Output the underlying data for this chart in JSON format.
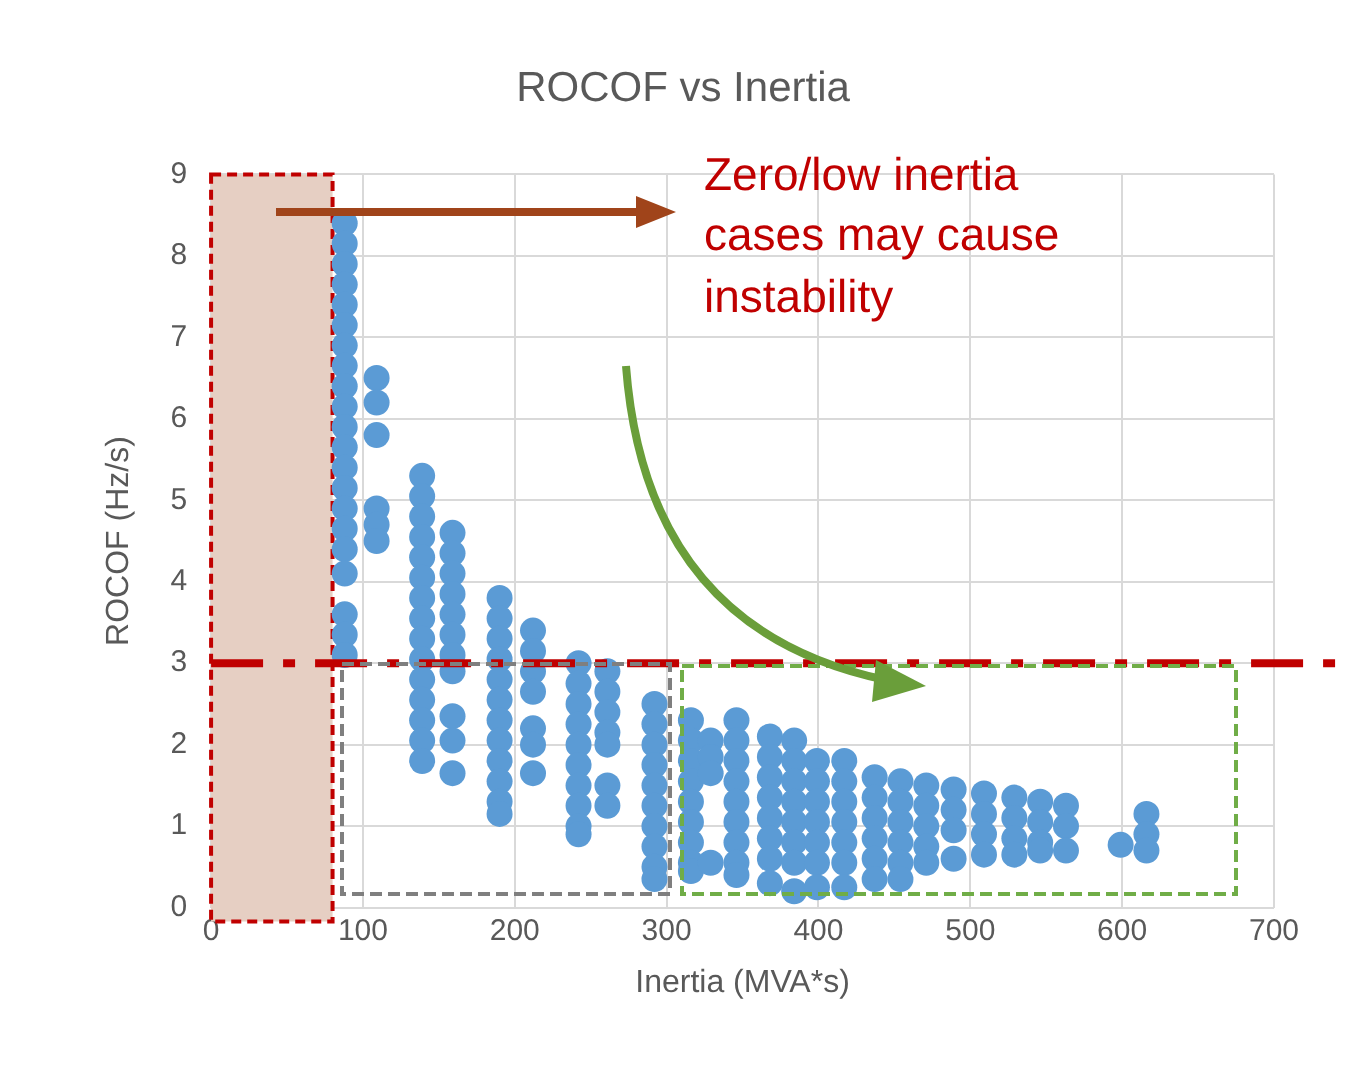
{
  "chart_data": {
    "type": "scatter",
    "title": "ROCOF vs Inertia",
    "xlabel": "Inertia (MVA*s)",
    "ylabel": "ROCOF (Hz/s)",
    "xlim": [
      0,
      700
    ],
    "xticks": [
      0,
      100,
      200,
      300,
      400,
      500,
      600,
      700
    ],
    "ylim": [
      0,
      9
    ],
    "yticks": [
      0,
      1,
      2,
      3,
      4,
      5,
      6,
      7,
      8,
      9
    ],
    "grid": true,
    "legend": false,
    "marker": "circle",
    "annotations": [
      "Zero/low inertia cases may cause instability"
    ],
    "ref_lines": [
      {
        "axis": "y",
        "value": 3,
        "color": "#c00000",
        "line_style": "dashed"
      }
    ],
    "bands": [
      {
        "axis": "x",
        "from": 0,
        "to": 80,
        "color": "#e6cfc3"
      }
    ],
    "series": [
      {
        "color": "#5b9bd5",
        "x": [
          88,
          88,
          88,
          88,
          88,
          88,
          88,
          88,
          88,
          88,
          88,
          88,
          88,
          88,
          88,
          88,
          88,
          88,
          88,
          88,
          88,
          109,
          109,
          109,
          109,
          109,
          109,
          139,
          139,
          139,
          139,
          139,
          139,
          139,
          139,
          139,
          139,
          139,
          139,
          139,
          139,
          139,
          159,
          159,
          159,
          159,
          159,
          159,
          159,
          159,
          159,
          159,
          159,
          190,
          190,
          190,
          190,
          190,
          190,
          190,
          190,
          190,
          190,
          190,
          190,
          212,
          212,
          212,
          212,
          212,
          212,
          212,
          242,
          242,
          242,
          242,
          242,
          242,
          242,
          242,
          242,
          242,
          261,
          261,
          261,
          261,
          261,
          261,
          261,
          292,
          292,
          292,
          292,
          292,
          292,
          292,
          292,
          292,
          292,
          316,
          316,
          316,
          316,
          316,
          316,
          316,
          316,
          316,
          329,
          329,
          329,
          329,
          346,
          346,
          346,
          346,
          346,
          346,
          346,
          346,
          346,
          368,
          368,
          368,
          368,
          368,
          368,
          368,
          368,
          384,
          384,
          384,
          384,
          384,
          384,
          384,
          384,
          399,
          399,
          399,
          399,
          399,
          399,
          399,
          417,
          417,
          417,
          417,
          417,
          417,
          417,
          437,
          437,
          437,
          437,
          437,
          437,
          454,
          454,
          454,
          454,
          454,
          454,
          471,
          471,
          471,
          471,
          471,
          489,
          489,
          489,
          489,
          509,
          509,
          509,
          509,
          529,
          529,
          529,
          529,
          546,
          546,
          546,
          546,
          563,
          563,
          563,
          599,
          616,
          616,
          616
        ],
        "values": [
          8.4,
          8.15,
          7.9,
          7.65,
          7.4,
          7.15,
          6.9,
          6.65,
          6.4,
          6.15,
          5.9,
          5.65,
          5.4,
          5.15,
          4.9,
          4.65,
          4.4,
          4.1,
          3.6,
          3.35,
          3.1,
          6.5,
          6.2,
          5.8,
          4.9,
          4.7,
          4.5,
          5.3,
          5.05,
          4.8,
          4.55,
          4.3,
          4.05,
          3.8,
          3.55,
          3.3,
          3.05,
          2.8,
          2.55,
          2.3,
          2.05,
          1.8,
          4.6,
          4.35,
          4.1,
          3.85,
          3.6,
          3.35,
          3.1,
          2.9,
          2.35,
          2.05,
          1.65,
          3.8,
          3.55,
          3.3,
          3.05,
          2.8,
          2.55,
          2.3,
          2.05,
          1.8,
          1.55,
          1.3,
          1.15,
          3.4,
          3.15,
          2.9,
          2.65,
          2.2,
          2,
          1.65,
          3,
          2.75,
          2.5,
          2.25,
          2,
          1.75,
          1.5,
          1.25,
          1,
          0.9,
          2.9,
          2.65,
          2.4,
          2.15,
          2,
          1.5,
          1.25,
          2.5,
          2.25,
          2,
          1.75,
          1.5,
          1.25,
          1,
          0.75,
          0.5,
          0.35,
          2.3,
          2.05,
          1.8,
          1.55,
          1.3,
          1.05,
          0.8,
          0.55,
          0.45,
          2.05,
          1.85,
          1.65,
          0.55,
          2.3,
          2.05,
          1.8,
          1.55,
          1.3,
          1.05,
          0.8,
          0.55,
          0.4,
          2.1,
          1.85,
          1.6,
          1.35,
          1.1,
          0.85,
          0.6,
          0.3,
          2.05,
          1.8,
          1.55,
          1.3,
          1.05,
          0.8,
          0.55,
          0.2,
          1.8,
          1.55,
          1.3,
          1.05,
          0.8,
          0.55,
          0.25,
          1.8,
          1.55,
          1.3,
          1.05,
          0.8,
          0.55,
          0.25,
          1.6,
          1.35,
          1.1,
          0.85,
          0.6,
          0.35,
          1.55,
          1.3,
          1.05,
          0.8,
          0.55,
          0.35,
          1.5,
          1.25,
          1,
          0.75,
          0.55,
          1.45,
          1.2,
          0.95,
          0.6,
          1.4,
          1.15,
          0.9,
          0.65,
          1.35,
          1.1,
          0.85,
          0.65,
          1.3,
          1.05,
          0.8,
          0.7,
          1.25,
          1,
          0.7,
          0.77,
          1.15,
          0.9,
          0.7
        ]
      }
    ]
  }
}
